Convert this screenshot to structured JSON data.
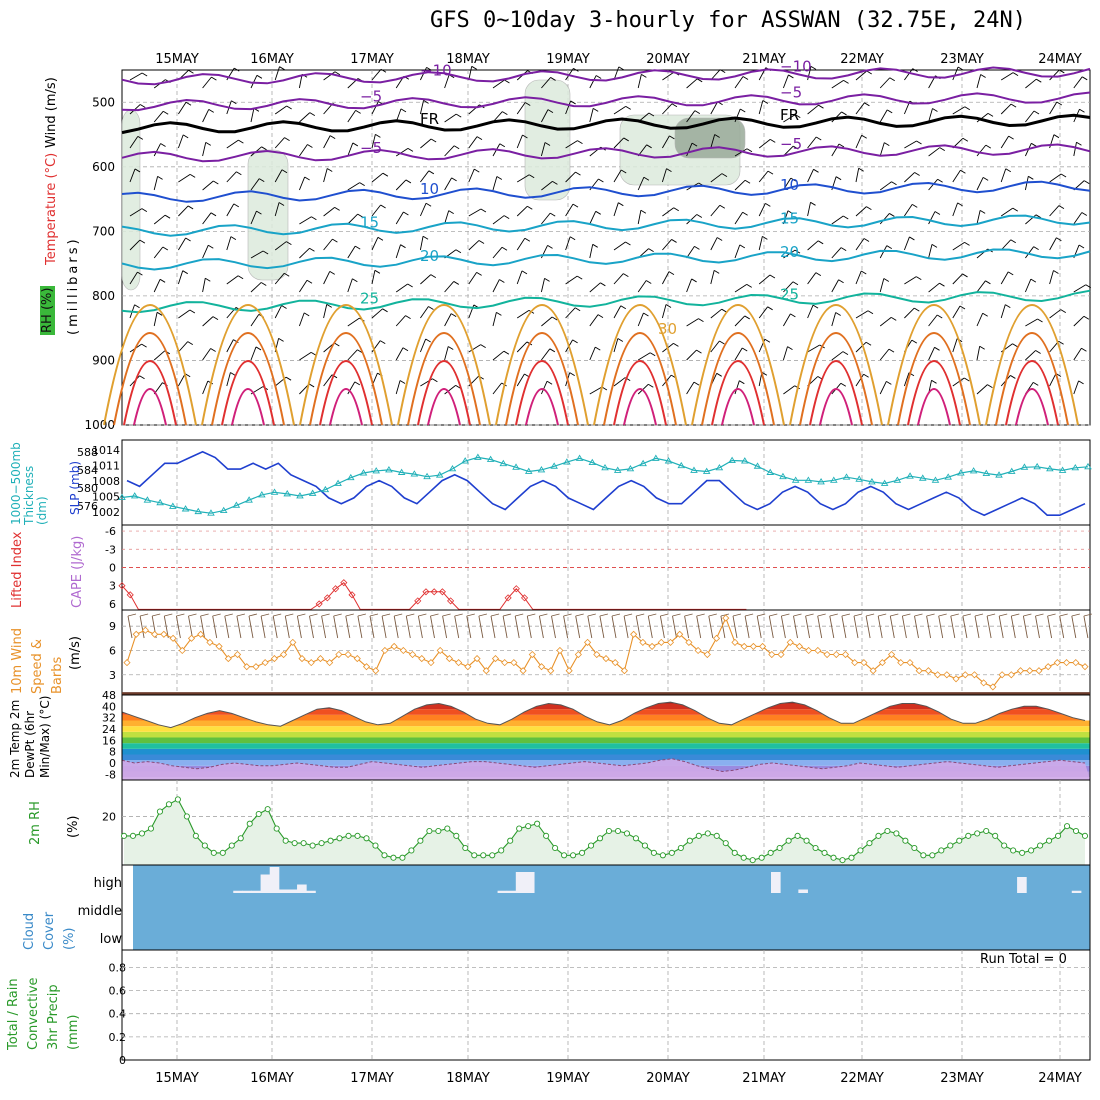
{
  "title": "GFS 0~10day 3-hourly for ASSWAN (32.75E, 24N)",
  "dates": [
    "15MAY",
    "16MAY",
    "17MAY",
    "18MAY",
    "19MAY",
    "20MAY",
    "21MAY",
    "22MAY",
    "23MAY",
    "24MAY"
  ],
  "colors": {
    "wind_barb": "#000000",
    "purple": "#7a1fa2",
    "blue": "#1f4fcf",
    "cyan": "#19a3c7",
    "teal": "#12b39c",
    "orange": "#e0a030",
    "red": "#e03030",
    "magenta": "#d0207a",
    "slp": "#1f3fcf",
    "thickness": "#20b0b8",
    "cape_line": "#e03030",
    "wind10": "#e8922a",
    "rh2m": "#2a9a2a",
    "cloud_bg": "#6aadd8",
    "cloud_block": "#f0f0f8",
    "precip_grid": "#999999"
  },
  "chart_data": [
    {
      "type": "contour",
      "panel": "upper-air",
      "ylabel_parts": [
        "Wind (m/s)",
        "Temperature (°C)",
        "RH (%)",
        "(millibars)"
      ],
      "y_ticks": [
        "500",
        "600",
        "700",
        "800",
        "900",
        "1000"
      ],
      "ylim": [
        1000,
        450
      ],
      "temperature_isotherms": [
        {
          "value": -10,
          "label": "−10",
          "pressure": 465
        },
        {
          "value": -5,
          "label": "−5",
          "pressure": 505
        },
        {
          "value": 0,
          "label": "FR",
          "pressure": 540
        },
        {
          "value": -5,
          "label": "−5",
          "pressure": 585
        },
        {
          "value": 10,
          "label": "10",
          "pressure": 648
        },
        {
          "value": 15,
          "label": "15",
          "pressure": 700
        },
        {
          "value": 20,
          "label": "20",
          "pressure": 752
        },
        {
          "value": 25,
          "label": "25",
          "pressure": 818
        }
      ],
      "contour_labels": [
        "−10",
        "−5",
        "FR",
        "−5",
        "10",
        "15",
        "20",
        "25",
        "30",
        "10",
        "30"
      ]
    },
    {
      "type": "line",
      "panel": "slp-thickness",
      "ylabel_left": "1000−500mb Thickness (dm)",
      "ylabel_right": "SLP (mb)",
      "left_ticks": [
        "588",
        "584",
        "580",
        "576"
      ],
      "right_ticks": [
        "1014",
        "1011",
        "1008",
        "1005",
        "1002"
      ],
      "series": [
        {
          "name": "SLP (mb)",
          "values": [
            1009,
            1008,
            1010,
            1012,
            1012,
            1013,
            1014,
            1013,
            1011,
            1011,
            1012,
            1011,
            1012,
            1010,
            1009,
            1008,
            1006,
            1005,
            1006,
            1008,
            1009,
            1008,
            1006,
            1005,
            1007,
            1009,
            1010,
            1009,
            1007,
            1005,
            1004,
            1006,
            1008,
            1009,
            1008,
            1006,
            1005,
            1004,
            1006,
            1008,
            1009,
            1008,
            1006,
            1005,
            1005,
            1007,
            1009,
            1009,
            1007,
            1005,
            1004,
            1005,
            1007,
            1008,
            1007,
            1005,
            1004,
            1005,
            1007,
            1008,
            1007,
            1005,
            1004,
            1005,
            1006,
            1007,
            1006,
            1004,
            1003,
            1004,
            1005,
            1006,
            1005,
            1003,
            1003,
            1004,
            1005
          ]
        },
        {
          "name": "1000−500mb Thickness (dm)",
          "values": [
            580.5,
            580.8,
            580,
            579.5,
            578.8,
            578.3,
            577.8,
            577.5,
            578,
            579,
            580,
            581,
            581.5,
            581.2,
            580.8,
            581.3,
            582,
            583.2,
            584.3,
            585.2,
            585.6,
            585.8,
            585.3,
            585,
            584.5,
            584.8,
            586,
            587.5,
            588.2,
            587.8,
            587,
            586.3,
            585.5,
            585.8,
            586.5,
            587.3,
            588,
            587.2,
            586.2,
            585.7,
            586,
            587,
            588,
            587.5,
            586.6,
            585.7,
            585.5,
            586.2,
            587.6,
            587.5,
            586.5,
            585.3,
            584.5,
            583.8,
            583.8,
            583.5,
            583.8,
            584.4,
            584,
            583.5,
            583.2,
            583.8,
            584.6,
            584.2,
            583.8,
            584.4,
            585.2,
            585.6,
            585.1,
            584.8,
            585.5,
            586.3,
            586.4,
            586,
            585.7,
            586.2,
            586.4
          ]
        }
      ]
    },
    {
      "type": "line",
      "panel": "lifted-index-cape",
      "ylabel_left": "Lifted Index",
      "ylabel_right": "CAPE (J/kg)",
      "left_ticks": [
        "-6",
        "-3",
        "0",
        "3",
        "6"
      ],
      "series": [
        {
          "name": "Lifted Index",
          "values": [
            3,
            4.5,
            7,
            7,
            7,
            7,
            7,
            7,
            7,
            7,
            7,
            7,
            7,
            7,
            7,
            7,
            7,
            7,
            7,
            7,
            7,
            7,
            7,
            7,
            6,
            5,
            3.5,
            2.5,
            4.5,
            7,
            7,
            7,
            7,
            7,
            7,
            7,
            5.5,
            4,
            4,
            4,
            5.5,
            7,
            7,
            7,
            7,
            7,
            7,
            5,
            3.5,
            5,
            7,
            7,
            7,
            7,
            7,
            7,
            7,
            7,
            7,
            7,
            7,
            7,
            7,
            7,
            7,
            7,
            7,
            7,
            7,
            7,
            7,
            7,
            7,
            7,
            7,
            7,
            7
          ]
        }
      ]
    },
    {
      "type": "line",
      "panel": "wind10m",
      "ylabel_left": "10m Wind Speed & Barbs",
      "ylabel_unit": "(m/s)",
      "left_ticks": [
        "9",
        "6",
        "3"
      ],
      "series": [
        {
          "name": "10m Wind Speed",
          "values": [
            4.5,
            8,
            8.5,
            8,
            8,
            7.5,
            6,
            7.5,
            8,
            7,
            6.5,
            5,
            5.5,
            4,
            4,
            4.5,
            5,
            5.5,
            7,
            5,
            4.5,
            5,
            4.5,
            5.5,
            5.5,
            5,
            4,
            3.5,
            6,
            6.5,
            6,
            5.5,
            5,
            4.5,
            6,
            5,
            4.5,
            4,
            5,
            3.5,
            5,
            4.5,
            4.5,
            3.5,
            5.5,
            4,
            3.5,
            6,
            3.5,
            5.5,
            7,
            5.5,
            5,
            4.5,
            3.5,
            8,
            7,
            6.5,
            7,
            7,
            8,
            7,
            6,
            5.5,
            7.5,
            10,
            7,
            6.5,
            6.5,
            6.5,
            5.5,
            5.5,
            7,
            6.5,
            6,
            6,
            5.5,
            5.5,
            5.5,
            4.5,
            4.5,
            3.5,
            4.5,
            5.5,
            4.5,
            4.5,
            3.5,
            3.5,
            3,
            3,
            2.5,
            3,
            3,
            2,
            1.5,
            3,
            3,
            3.5,
            3.5,
            3.5,
            4,
            4.5,
            4.5,
            4.5,
            4
          ]
        }
      ]
    },
    {
      "type": "area",
      "panel": "temperature",
      "ylabel_left": "2m Temp 2m DewPt (6hr Min/Max) (°C)",
      "left_ticks": [
        "48",
        "40",
        "32",
        "24",
        "16",
        "8",
        "0",
        "-8"
      ],
      "series": [
        {
          "name": "2m Temp",
          "values": [
            36,
            33,
            30,
            27,
            25,
            28,
            32,
            35,
            37,
            35,
            32,
            29,
            27,
            26,
            30,
            34,
            38,
            39,
            37,
            33,
            29,
            27,
            28,
            33,
            38,
            41,
            42,
            40,
            36,
            31,
            28,
            27,
            31,
            36,
            40,
            42,
            41,
            38,
            33,
            29,
            27,
            30,
            35,
            39,
            42,
            43,
            41,
            37,
            32,
            28,
            27,
            31,
            35,
            39,
            42,
            43,
            41,
            37,
            32,
            28,
            28,
            32,
            36,
            40,
            42,
            42,
            40,
            36,
            31,
            28,
            28,
            31,
            35,
            38,
            40,
            40,
            38,
            35,
            32,
            30
          ]
        },
        {
          "name": "2m DewPt",
          "values": [
            2,
            0,
            1,
            0,
            -2,
            -3,
            -4,
            -3,
            -1,
            0,
            -1,
            -2,
            -2,
            -1,
            0,
            -1,
            -2,
            -3,
            -3,
            -1,
            1,
            0,
            -1,
            -2,
            -3,
            -2,
            -1,
            0,
            1,
            1,
            0,
            -1,
            -2,
            -3,
            -2,
            -1,
            0,
            1,
            0,
            -1,
            -2,
            -1,
            0,
            2,
            3,
            1,
            -2,
            -4,
            -6,
            -5,
            -3,
            -1,
            0,
            -1,
            -2,
            -3,
            -4,
            -3,
            -2,
            0,
            -1,
            -2,
            -3,
            -2,
            -1,
            0,
            1,
            0,
            -1,
            -2,
            -3,
            -2,
            -1,
            0,
            1,
            2,
            1,
            0
          ]
        }
      ]
    },
    {
      "type": "area",
      "panel": "rh2m",
      "ylabel_left": "2m RH",
      "ylabel_unit": "(%)",
      "left_ticks": [
        "20"
      ],
      "ylim": [
        0,
        35
      ],
      "series": [
        {
          "name": "2m RH",
          "values": [
            12,
            12,
            13,
            15,
            22,
            25,
            27,
            20,
            12,
            8,
            5,
            5,
            8,
            11,
            17,
            21,
            23,
            15,
            10,
            9,
            9,
            8,
            9,
            10,
            11,
            12,
            12,
            11,
            8,
            4,
            3,
            3,
            6,
            10,
            14,
            14,
            15,
            12,
            7,
            4,
            4,
            4,
            6,
            10,
            15,
            16,
            17,
            12,
            7,
            4,
            4,
            5,
            8,
            11,
            14,
            14,
            13,
            11,
            8,
            5,
            4,
            5,
            7,
            10,
            12,
            13,
            12,
            9,
            5,
            3,
            2,
            3,
            5,
            7,
            10,
            12,
            10,
            7,
            5,
            3,
            2,
            3,
            6,
            9,
            12,
            14,
            13,
            10,
            7,
            4,
            4,
            6,
            8,
            10,
            12,
            13,
            14,
            12,
            8,
            6,
            5,
            6,
            8,
            10,
            12,
            16,
            14,
            12
          ]
        }
      ]
    },
    {
      "type": "bar",
      "panel": "cloud-cover",
      "ylabel_left": "Cloud Cover (%)",
      "levels": [
        "high",
        "middle",
        "low"
      ],
      "high_cloud_fraction": [
        0,
        0,
        0,
        0,
        0,
        0,
        0,
        0,
        0,
        0,
        0,
        0.05,
        0.05,
        0.05,
        0.7,
        1,
        0.1,
        0.1,
        0.3,
        0.05,
        0,
        0,
        0,
        0,
        0,
        0,
        0,
        0,
        0,
        0,
        0,
        0,
        0,
        0,
        0,
        0,
        0,
        0,
        0,
        0,
        0.05,
        0.05,
        0.8,
        0.8,
        0,
        0,
        0,
        0,
        0,
        0,
        0,
        0,
        0,
        0,
        0,
        0,
        0,
        0,
        0,
        0,
        0,
        0,
        0,
        0,
        0,
        0,
        0,
        0,
        0,
        0,
        0.8,
        0,
        0,
        0.1,
        0,
        0,
        0,
        0,
        0,
        0,
        0,
        0,
        0,
        0,
        0,
        0,
        0,
        0,
        0,
        0,
        0,
        0,
        0,
        0,
        0,
        0,
        0,
        0.6,
        0,
        0,
        0,
        0,
        0,
        0.05,
        0
      ]
    },
    {
      "type": "bar",
      "panel": "precip",
      "ylabel_left": "Total / Rain Convective 3hr Precip (mm)",
      "left_ticks": [
        "0.8",
        "0.6",
        "0.4",
        "0.2",
        "0"
      ],
      "ylim": [
        0,
        0.95
      ],
      "values": [],
      "run_total_label": "Run Total = 0"
    }
  ]
}
